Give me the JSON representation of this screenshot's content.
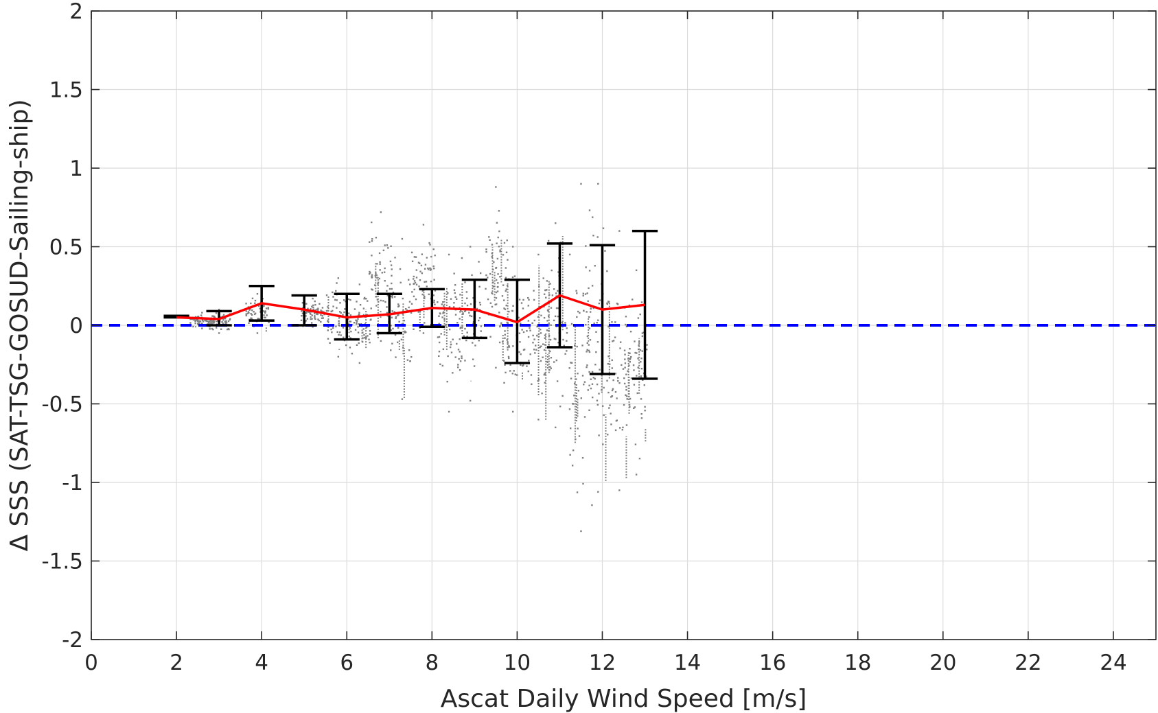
{
  "chart_data": {
    "type": "scatter",
    "title": "",
    "xlabel": "Ascat Daily Wind Speed [m/s]",
    "ylabel": "Δ SSS (SAT-TSG-GOSUD-Sailing-ship)",
    "xlim": [
      0,
      25
    ],
    "ylim": [
      -2,
      2
    ],
    "grid": true,
    "xticks": [
      0,
      2,
      4,
      6,
      8,
      10,
      12,
      14,
      16,
      18,
      20,
      22,
      24
    ],
    "yticks": [
      -2,
      -1.5,
      -1,
      -0.5,
      0,
      0.5,
      1,
      1.5,
      2
    ],
    "xtick_labels": [
      "0",
      "2",
      "4",
      "6",
      "8",
      "10",
      "12",
      "14",
      "16",
      "18",
      "20",
      "22",
      "24"
    ],
    "ytick_labels": [
      "-2",
      "-1.5",
      "-1",
      "-0.5",
      "0",
      "0.5",
      "1",
      "1.5",
      "2"
    ],
    "reference_line": {
      "y": 0,
      "style": "dashed",
      "color": "#0000ff"
    },
    "scatter_color": "#808080",
    "mean_line_color": "#ff0000",
    "errorbar_color": "#000000",
    "binned_mean": {
      "x": [
        2,
        3,
        4,
        5,
        6,
        7,
        8,
        9,
        10,
        11,
        12,
        13
      ],
      "y": [
        0.05,
        0.04,
        0.14,
        0.1,
        0.05,
        0.07,
        0.11,
        0.1,
        0.02,
        0.19,
        0.1,
        0.13
      ],
      "err_low": [
        0.05,
        0.0,
        0.03,
        0.0,
        -0.09,
        -0.05,
        -0.01,
        -0.08,
        -0.24,
        -0.14,
        -0.31,
        -0.34
      ],
      "err_high": [
        0.06,
        0.09,
        0.25,
        0.19,
        0.2,
        0.2,
        0.23,
        0.29,
        0.29,
        0.52,
        0.51,
        0.6
      ]
    },
    "scatter_clusters": [
      {
        "x": 2.6,
        "ymin": -0.02,
        "ymax": 0.08
      },
      {
        "x": 3.0,
        "ymin": -0.05,
        "ymax": 0.1
      },
      {
        "x": 3.9,
        "ymin": -0.05,
        "ymax": 0.2
      },
      {
        "x": 5.2,
        "ymin": -0.01,
        "ymax": 0.17
      },
      {
        "x": 5.8,
        "ymin": -0.2,
        "ymax": 0.3
      },
      {
        "x": 6.3,
        "ymin": -0.24,
        "ymax": 0.26
      },
      {
        "x": 6.8,
        "ymin": -0.1,
        "ymax": 0.72
      },
      {
        "x": 7.3,
        "ymin": -0.47,
        "ymax": 0.55
      },
      {
        "x": 7.8,
        "ymin": -0.05,
        "ymax": 0.64
      },
      {
        "x": 8.4,
        "ymin": -0.55,
        "ymax": 0.45
      },
      {
        "x": 8.9,
        "ymin": -0.48,
        "ymax": 0.5
      },
      {
        "x": 9.5,
        "ymin": -0.27,
        "ymax": 0.88
      },
      {
        "x": 9.9,
        "ymin": -0.55,
        "ymax": 0.5
      },
      {
        "x": 10.5,
        "ymin": -0.6,
        "ymax": 0.45
      },
      {
        "x": 10.9,
        "ymin": -0.65,
        "ymax": 0.65
      },
      {
        "x": 11.5,
        "ymin": -1.31,
        "ymax": 0.9
      },
      {
        "x": 11.9,
        "ymin": -1.06,
        "ymax": 0.9
      },
      {
        "x": 12.4,
        "ymin": -1.05,
        "ymax": 0.6
      },
      {
        "x": 12.8,
        "ymin": -0.95,
        "ymax": 0.35
      }
    ]
  }
}
